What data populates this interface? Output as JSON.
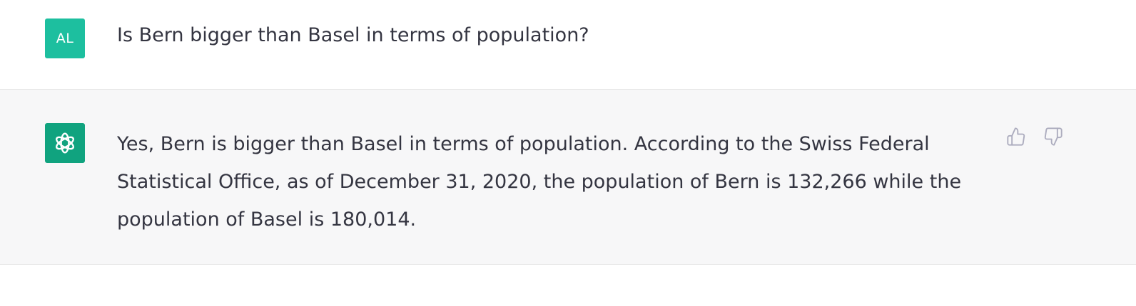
{
  "conversation": {
    "user_message": {
      "avatar_initials": "AL",
      "avatar_color": "#1dbf9f",
      "text": "Is Bern bigger than Basel in terms of population?"
    },
    "assistant_message": {
      "avatar_icon": "openai-logo-icon",
      "avatar_color": "#10a37f",
      "text": "Yes, Bern is bigger than Basel in terms of population. According to the Swiss Federal Statistical Office, as of December 31, 2020, the population of Bern is 132,266 while the population of Basel is 180,014."
    },
    "feedback": {
      "thumbs_up_icon": "thumbs-up-icon",
      "thumbs_down_icon": "thumbs-down-icon"
    }
  }
}
